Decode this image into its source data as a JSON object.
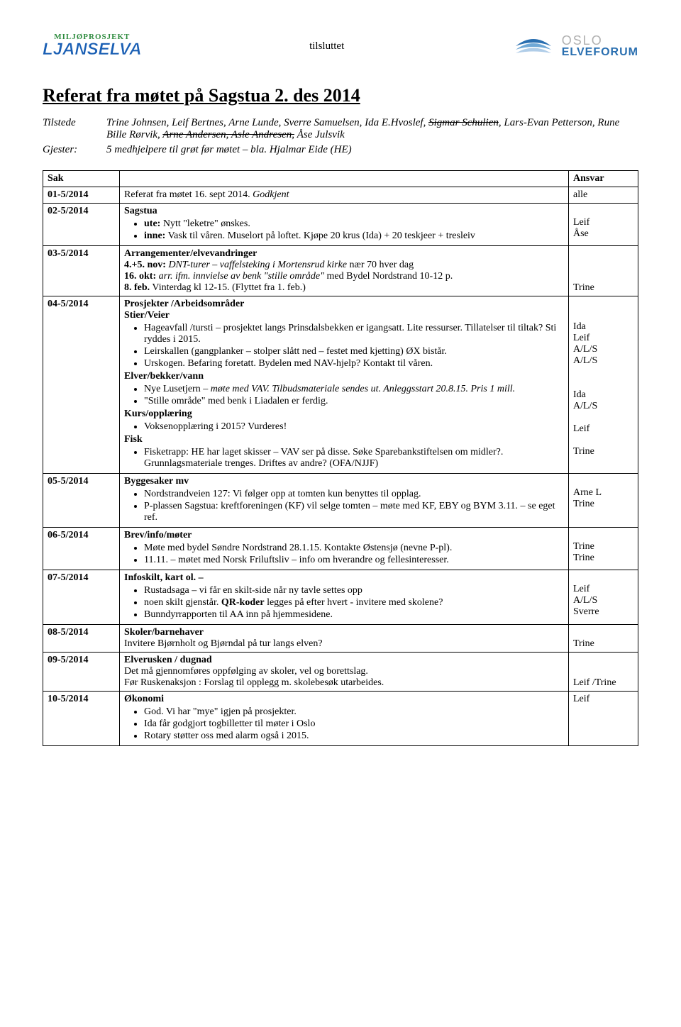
{
  "header": {
    "logo_arc": "MILJØPROSJEKT",
    "logo_main": "LJANSELVA",
    "tilsluttet": "tilsluttet",
    "oslo_top": "OSLO",
    "oslo_bottom": "ELVEFORUM"
  },
  "title": "Referat fra møtet på Sagstua 2. des 2014",
  "attendance": {
    "tilstede_label": "Tilstede",
    "tilstede_pre": "Trine Johnsen, Leif Bertnes, Arne Lunde, Sverre Samuelsen, Ida E.Hvoslef, ",
    "tilstede_strike1": "Sigmar Schulien",
    "tilstede_mid": ", Lars-Evan Petterson, Rune Bille Rørvik, ",
    "tilstede_strike2": "Arne Andersen, Asle Andresen,",
    "tilstede_post": " Åse Julsvik",
    "gjester_label": "Gjester:",
    "gjester_names": "5 medhjelpere til grøt før møtet – bla. Hjalmar Eide (HE)"
  },
  "table": {
    "headers": {
      "sak": "Sak",
      "ansvar": "Ansvar"
    },
    "rows": [
      {
        "id": "01-5/2014",
        "content": "<span>Referat fra møtet 16. sept 2014. <i>Godkjent</i></span>",
        "resp": "alle"
      },
      {
        "id": "02-5/2014",
        "content": "<b>Sagstua</b><ul><li><b>ute:</b> Nytt \"leketre\" ønskes.</li><li><b>inne:</b> Vask til våren. Muselort på loftet. Kjøpe 20 krus (Ida) + 20 teskjeer + tresleiv</li></ul>",
        "resp": "<span class='resp-line'>&nbsp;</span><span class='resp-line'>Leif</span><span class='resp-line'>Åse</span>"
      },
      {
        "id": "03-5/2014",
        "content": "<b>Arrangementer/elvevandringer</b><br><b>4.+5. nov:</b> <i>DNT-turer – vaffelsteking i Mortensrud kirke</i> nær 70 hver dag<br><b>16. okt:</b> <i>arr. ifm. innvielse av benk \"stille område\"</i> med Bydel Nordstrand 10-12 p.<br><b>8. feb.</b> Vinterdag kl 12-15. (Flyttet fra 1. feb.)",
        "resp": "<br><br><br>Trine"
      },
      {
        "id": "04-5/2014",
        "content": "<b>Prosjekter /Arbeidsområder</b><br><span class='section-sub'>Stier/Veier</span><ul><li>Hageavfall /tursti – prosjektet langs Prinsdalsbekken er igangsatt. Lite ressurser. Tillatelser til tiltak? Sti ryddes i 2015.</li><li>Leirskallen (gangplanker – stolper slått ned – festet med kjetting) ØX bistår.</li><li>Urskogen. Befaring foretatt. Bydelen med NAV-hjelp? Kontakt til våren.</li></ul><span class='section-sub'>Elver/bekker/vann</span><ul><li>Nye Lusetjern – <i>møte med VAV. Tilbudsmateriale sendes ut. Anleggsstart 20.8.15. Pris 1 mill.</i></li><li>\"Stille område\" med benk i Liadalen er ferdig.</li></ul><span class='section-sub'>Kurs/opplæring</span><ul><li>Voksenopplæring i 2015? Vurderes!</li></ul><span class='section-sub'>Fisk</span><ul><li>Fisketrapp: HE har laget skisser – VAV ser på disse. Søke Sparebankstiftelsen om midler?. Grunnlagsmateriale trenges. Driftes av andre? (OFA/NJJF)</li></ul>",
        "resp": "<br><br>Ida<br>Leif<br>A/L/S<br>A/L/S<br><br><br>Ida<br>A/L/S<br><br>Leif<br><br>Trine"
      },
      {
        "id": "05-5/2014",
        "content": "<b>Byggesaker mv</b><ul><li>Nordstrandveien 127: Vi følger opp at tomten kun benyttes til opplag.</li><li>P-plassen Sagstua: kreftforeningen (KF) vil selge tomten – møte med KF, EBY og BYM 3.11. – se eget ref.</li></ul>",
        "resp": "<br>Arne L<br>Trine"
      },
      {
        "id": "06-5/2014",
        "content": "<b>Brev/info/møter</b><ul><li>Møte med bydel Søndre Nordstrand 28.1.15. Kontakte Østensjø (nevne P-pl).</li><li>11.11. – møtet med Norsk Friluftsliv – info om hverandre og fellesinteresser.</li></ul>",
        "resp": "<br>Trine<br>Trine"
      },
      {
        "id": "07-5/2014",
        "content": "<b>Infoskilt, kart ol. –</b><ul><li>Rustadsaga – vi får en skilt-side når ny tavle settes opp</li><li>noen skilt gjenstår. <b>QR-koder</b> legges på efter hvert - invitere med skolene?</li><li>Bunndyrrapporten til AA inn på hjemmesidene.</li></ul>",
        "resp": "<br>Leif<br>A/L/S<br>Sverre"
      },
      {
        "id": "08-5/2014",
        "content": "<b>Skoler/barnehaver</b><br>Invitere Bjørnholt og Bjørndal på tur langs elven?",
        "resp": "<br>Trine"
      },
      {
        "id": "09-5/2014",
        "content": "<b>Elverusken / dugnad</b><br>Det må gjennomføres oppfølging av skoler, vel og borettslag.<br>Før Ruskenaksjon : Forslag til opplegg m. skolebesøk utarbeides.",
        "resp": "<br><br>Leif /Trine"
      },
      {
        "id": "10-5/2014",
        "content": "<b>Økonomi</b><ul><li>God. Vi har \"mye\" igjen på prosjekter.</li><li>Ida får godgjort togbilletter til møter i Oslo</li><li>Rotary støtter oss med alarm også i 2015.</li></ul>",
        "resp": "Leif"
      }
    ]
  }
}
